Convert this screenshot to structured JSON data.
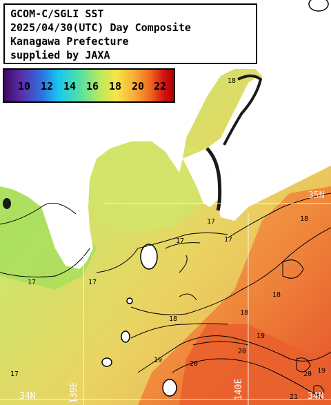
{
  "title": {
    "line1": "GCOM-C/SGLI SST",
    "line2": "2025/04/30(UTC) Day Composite",
    "line3": "Kanagawa Prefecture",
    "line4": "supplied by JAXA"
  },
  "colorbar": {
    "ticks": [
      "10",
      "12",
      "14",
      "16",
      "18",
      "20",
      "22"
    ]
  },
  "coords": {
    "lon_139": "139E",
    "lon_140": "140E",
    "lat_34_left": "34N",
    "lat_34_right": "34N",
    "lat_35": "35N"
  },
  "contours": {
    "c17a": "17",
    "c17b": "17",
    "c17c": "17",
    "c17d": "17",
    "c17e": "17",
    "c17f": "17",
    "c18a": "18",
    "c18b": "18",
    "c18c": "18",
    "c18d": "18",
    "c18e": "18",
    "c19a": "19",
    "c19b": "19",
    "c19c": "19",
    "c20a": "20",
    "c20b": "20",
    "c20c": "20",
    "c21a": "21"
  },
  "colors": {
    "land": "#ffffff",
    "cool_water": "#a8e05c",
    "mid_water": "#d8e66a",
    "warm_water": "#f3a45a",
    "hot_water": "#e8582a",
    "grid": "#ffffff"
  }
}
